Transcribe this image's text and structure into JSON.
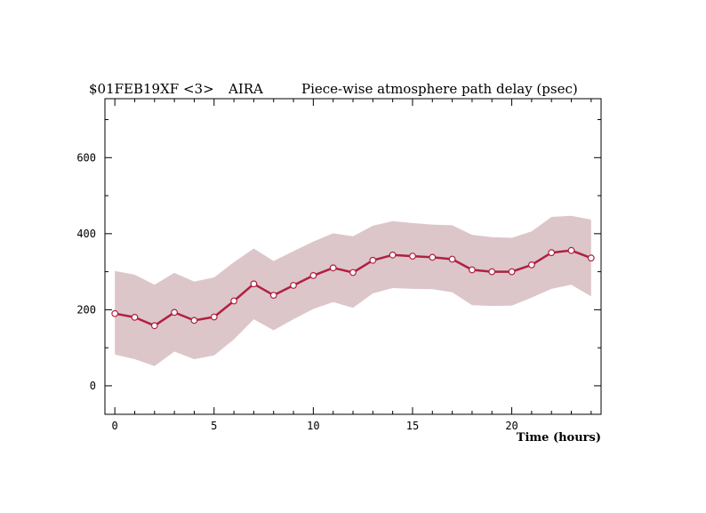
{
  "header": {
    "left": "$01FEB19XF <3>",
    "station": "AIRA",
    "right": "Piece-wise atmosphere path delay (psec)"
  },
  "colors": {
    "line": "#b0203f",
    "band": "#dcc6ca",
    "marker_fill": "#ffffff",
    "axes": "#000000"
  },
  "chart_data": {
    "type": "line",
    "title": "Piece-wise atmosphere path delay (psec)",
    "xlabel": "Time (hours)",
    "ylabel": "",
    "xlim": [
      -0.5,
      24.5
    ],
    "ylim": [
      -75,
      755
    ],
    "x_ticks": [
      0,
      5,
      10,
      15,
      20
    ],
    "y_ticks": [
      0,
      200,
      400,
      600
    ],
    "x_minor_step": 1,
    "y_minor_step": 100,
    "grid": false,
    "series": [
      {
        "x": [
          0,
          1,
          2,
          3,
          4,
          5,
          6,
          7,
          8,
          9,
          10,
          11,
          12,
          13,
          14,
          15,
          16,
          17,
          18,
          19,
          20,
          21,
          22,
          23,
          24
        ],
        "values": [
          190,
          180,
          158,
          193,
          172,
          181,
          223,
          268,
          238,
          264,
          290,
          310,
          298,
          330,
          344,
          341,
          338,
          333,
          305,
          300,
          300,
          318,
          350,
          356,
          336
        ],
        "upper": [
          302,
          292,
          266,
          297,
          274,
          285,
          325,
          361,
          328,
          354,
          379,
          401,
          393,
          421,
          433,
          428,
          424,
          422,
          397,
          391,
          389,
          406,
          444,
          447,
          437
        ],
        "lower": [
          82,
          70,
          52,
          90,
          70,
          80,
          122,
          175,
          146,
          175,
          202,
          220,
          205,
          243,
          257,
          255,
          254,
          246,
          212,
          210,
          211,
          232,
          255,
          266,
          235
        ]
      }
    ]
  }
}
